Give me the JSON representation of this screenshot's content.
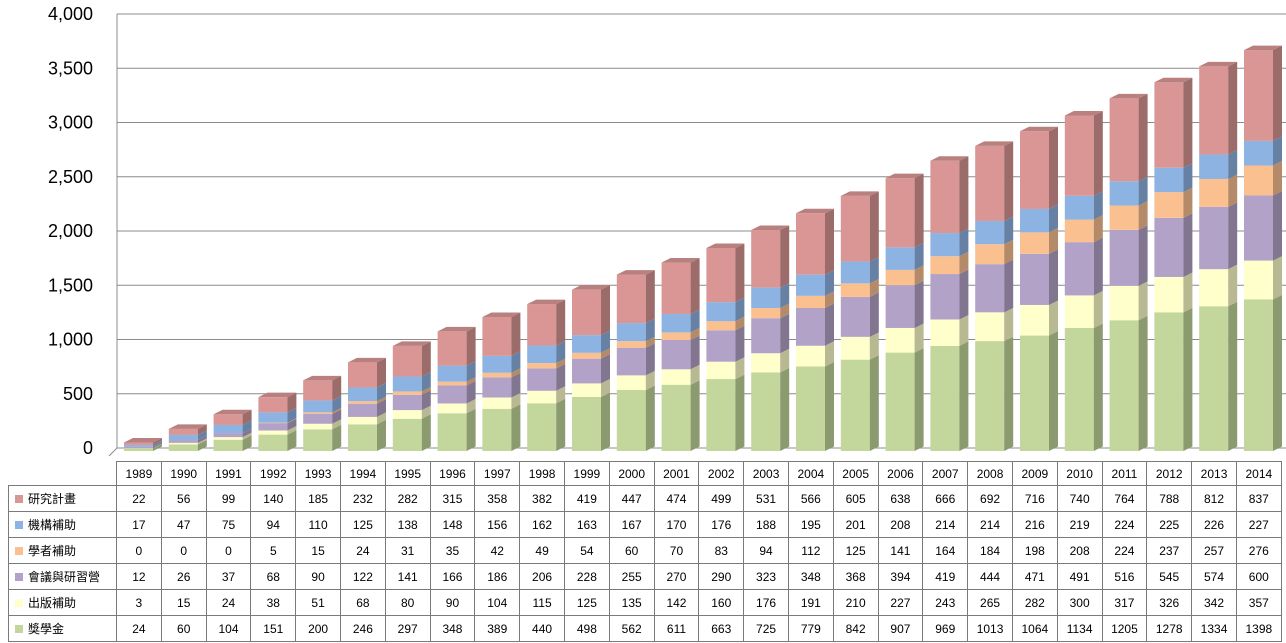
{
  "chart_data": {
    "type": "bar",
    "stacked": true,
    "three_d": true,
    "title": "",
    "xlabel": "",
    "ylabel": "",
    "ylim": [
      0,
      4000
    ],
    "y_ticks": [
      "0",
      "500",
      "1,000",
      "1,500",
      "2,000",
      "2,500",
      "3,000",
      "3,500",
      "4,000"
    ],
    "grid": true,
    "legend": "data table below chart",
    "categories": [
      "1989",
      "1990",
      "1991",
      "1992",
      "1993",
      "1994",
      "1995",
      "1996",
      "1997",
      "1998",
      "1999",
      "2000",
      "2001",
      "2002",
      "2003",
      "2004",
      "2005",
      "2006",
      "2007",
      "2008",
      "2009",
      "2010",
      "2011",
      "2012",
      "2013",
      "2014"
    ],
    "series": [
      {
        "name": "研究計畫",
        "color": "#d99694",
        "values": [
          22,
          56,
          99,
          140,
          185,
          232,
          282,
          315,
          358,
          382,
          419,
          447,
          474,
          499,
          531,
          566,
          605,
          638,
          666,
          692,
          716,
          740,
          764,
          788,
          812,
          837
        ]
      },
      {
        "name": "機構補助",
        "color": "#8db3e2",
        "values": [
          17,
          47,
          75,
          94,
          110,
          125,
          138,
          148,
          156,
          162,
          163,
          167,
          170,
          176,
          188,
          195,
          201,
          208,
          214,
          214,
          216,
          219,
          224,
          225,
          226,
          227
        ]
      },
      {
        "name": "學者補助",
        "color": "#fac090",
        "values": [
          0,
          0,
          0,
          5,
          15,
          24,
          31,
          35,
          42,
          49,
          54,
          60,
          70,
          83,
          94,
          112,
          125,
          141,
          164,
          184,
          198,
          208,
          224,
          237,
          257,
          276
        ]
      },
      {
        "name": "會議與研習營",
        "color": "#b3a2c7",
        "values": [
          12,
          26,
          37,
          68,
          90,
          122,
          141,
          166,
          186,
          206,
          228,
          255,
          270,
          290,
          323,
          348,
          368,
          394,
          419,
          444,
          471,
          491,
          516,
          545,
          574,
          600
        ]
      },
      {
        "name": "出版補助",
        "color": "#ffffcc",
        "values": [
          3,
          15,
          24,
          38,
          51,
          68,
          80,
          90,
          104,
          115,
          125,
          135,
          142,
          160,
          176,
          191,
          210,
          227,
          243,
          265,
          282,
          300,
          317,
          326,
          342,
          357
        ]
      },
      {
        "name": "獎學金",
        "color": "#c3d69b",
        "values": [
          24,
          60,
          104,
          151,
          200,
          246,
          297,
          348,
          389,
          440,
          498,
          562,
          611,
          663,
          725,
          779,
          842,
          907,
          969,
          1013,
          1064,
          1134,
          1205,
          1278,
          1334,
          1398
        ]
      }
    ]
  }
}
